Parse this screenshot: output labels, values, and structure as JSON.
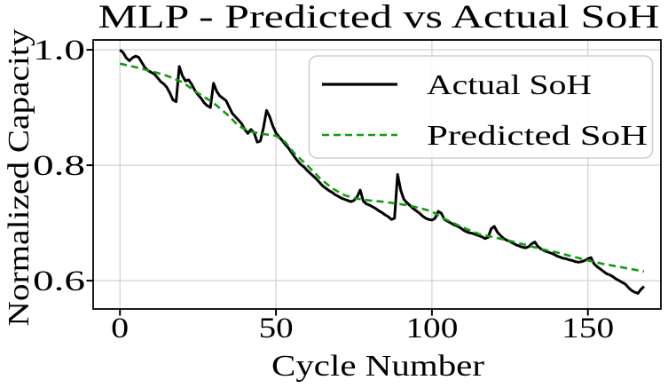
{
  "chart_data": {
    "type": "line",
    "title": "MLP - Predicted vs Actual SoH",
    "xlabel": "Cycle Number",
    "ylabel": "Normalized Capacity",
    "xlim": [
      -8.6,
      173.4
    ],
    "ylim": [
      0.551,
      1.017
    ],
    "xticks": [
      0,
      50,
      100,
      150
    ],
    "yticks": [
      1.0,
      0.8,
      0.6
    ],
    "grid": true,
    "grid_color": "#cccccc",
    "legend_position": "upper right",
    "series": [
      {
        "name": "Actual SoH",
        "color": "#000000",
        "style": "solid",
        "points": [
          [
            0,
            1.0
          ],
          [
            1,
            0.995
          ],
          [
            2,
            0.986
          ],
          [
            3,
            0.981
          ],
          [
            4,
            0.986
          ],
          [
            5,
            0.989
          ],
          [
            6,
            0.987
          ],
          [
            7,
            0.978
          ],
          [
            8,
            0.969
          ],
          [
            9,
            0.964
          ],
          [
            10,
            0.961
          ],
          [
            11,
            0.958
          ],
          [
            12,
            0.952
          ],
          [
            13,
            0.945
          ],
          [
            14,
            0.941
          ],
          [
            15,
            0.935
          ],
          [
            16,
            0.925
          ],
          [
            17,
            0.913
          ],
          [
            18,
            0.91
          ],
          [
            19,
            0.971
          ],
          [
            20,
            0.955
          ],
          [
            21,
            0.946
          ],
          [
            22,
            0.948
          ],
          [
            23,
            0.94
          ],
          [
            24,
            0.93
          ],
          [
            25,
            0.922
          ],
          [
            26,
            0.916
          ],
          [
            27,
            0.908
          ],
          [
            28,
            0.903
          ],
          [
            29,
            0.9
          ],
          [
            30,
            0.942
          ],
          [
            31,
            0.928
          ],
          [
            32,
            0.92
          ],
          [
            33,
            0.916
          ],
          [
            34,
            0.912
          ],
          [
            35,
            0.901
          ],
          [
            36,
            0.89
          ],
          [
            37,
            0.884
          ],
          [
            38,
            0.878
          ],
          [
            39,
            0.872
          ],
          [
            40,
            0.862
          ],
          [
            41,
            0.855
          ],
          [
            42,
            0.862
          ],
          [
            43,
            0.856
          ],
          [
            44,
            0.84
          ],
          [
            45,
            0.842
          ],
          [
            46,
            0.865
          ],
          [
            47,
            0.895
          ],
          [
            48,
            0.884
          ],
          [
            49,
            0.868
          ],
          [
            50,
            0.856
          ],
          [
            51,
            0.849
          ],
          [
            52,
            0.843
          ],
          [
            53,
            0.836
          ],
          [
            54,
            0.83
          ],
          [
            55,
            0.822
          ],
          [
            56,
            0.814
          ],
          [
            57,
            0.807
          ],
          [
            58,
            0.801
          ],
          [
            59,
            0.797
          ],
          [
            60,
            0.791
          ],
          [
            61,
            0.786
          ],
          [
            62,
            0.781
          ],
          [
            63,
            0.776
          ],
          [
            64,
            0.77
          ],
          [
            65,
            0.764
          ],
          [
            66,
            0.76
          ],
          [
            67,
            0.756
          ],
          [
            68,
            0.753
          ],
          [
            69,
            0.749
          ],
          [
            70,
            0.746
          ],
          [
            71,
            0.743
          ],
          [
            72,
            0.741
          ],
          [
            73,
            0.739
          ],
          [
            74,
            0.737
          ],
          [
            75,
            0.739
          ],
          [
            76,
            0.745
          ],
          [
            77,
            0.757
          ],
          [
            78,
            0.738
          ],
          [
            79,
            0.733
          ],
          [
            80,
            0.731
          ],
          [
            81,
            0.728
          ],
          [
            82,
            0.725
          ],
          [
            83,
            0.721
          ],
          [
            84,
            0.718
          ],
          [
            85,
            0.714
          ],
          [
            86,
            0.711
          ],
          [
            87,
            0.706
          ],
          [
            88,
            0.708
          ],
          [
            89,
            0.784
          ],
          [
            90,
            0.757
          ],
          [
            91,
            0.741
          ],
          [
            92,
            0.735
          ],
          [
            93,
            0.73
          ],
          [
            94,
            0.725
          ],
          [
            95,
            0.721
          ],
          [
            96,
            0.717
          ],
          [
            97,
            0.712
          ],
          [
            98,
            0.708
          ],
          [
            99,
            0.706
          ],
          [
            100,
            0.705
          ],
          [
            101,
            0.708
          ],
          [
            102,
            0.72
          ],
          [
            103,
            0.717
          ],
          [
            104,
            0.706
          ],
          [
            105,
            0.703
          ],
          [
            106,
            0.7
          ],
          [
            107,
            0.697
          ],
          [
            108,
            0.695
          ],
          [
            109,
            0.692
          ],
          [
            110,
            0.688
          ],
          [
            111,
            0.685
          ],
          [
            112,
            0.683
          ],
          [
            113,
            0.682
          ],
          [
            114,
            0.68
          ],
          [
            115,
            0.678
          ],
          [
            116,
            0.676
          ],
          [
            117,
            0.673
          ],
          [
            118,
            0.675
          ],
          [
            119,
            0.69
          ],
          [
            120,
            0.694
          ],
          [
            121,
            0.684
          ],
          [
            122,
            0.678
          ],
          [
            123,
            0.673
          ],
          [
            124,
            0.67
          ],
          [
            125,
            0.668
          ],
          [
            126,
            0.665
          ],
          [
            127,
            0.662
          ],
          [
            128,
            0.66
          ],
          [
            129,
            0.658
          ],
          [
            130,
            0.657
          ],
          [
            131,
            0.659
          ],
          [
            132,
            0.664
          ],
          [
            133,
            0.667
          ],
          [
            134,
            0.659
          ],
          [
            135,
            0.655
          ],
          [
            136,
            0.652
          ],
          [
            137,
            0.65
          ],
          [
            138,
            0.648
          ],
          [
            139,
            0.646
          ],
          [
            140,
            0.643
          ],
          [
            141,
            0.641
          ],
          [
            142,
            0.639
          ],
          [
            143,
            0.638
          ],
          [
            144,
            0.636
          ],
          [
            145,
            0.635
          ],
          [
            146,
            0.633
          ],
          [
            147,
            0.632
          ],
          [
            148,
            0.633
          ],
          [
            149,
            0.635
          ],
          [
            150,
            0.638
          ],
          [
            151,
            0.64
          ],
          [
            152,
            0.629
          ],
          [
            153,
            0.624
          ],
          [
            154,
            0.62
          ],
          [
            155,
            0.616
          ],
          [
            156,
            0.612
          ],
          [
            157,
            0.61
          ],
          [
            158,
            0.607
          ],
          [
            159,
            0.603
          ],
          [
            160,
            0.6
          ],
          [
            161,
            0.597
          ],
          [
            162,
            0.594
          ],
          [
            163,
            0.588
          ],
          [
            164,
            0.583
          ],
          [
            165,
            0.58
          ],
          [
            166,
            0.578
          ],
          [
            167,
            0.585
          ],
          [
            168,
            0.59
          ]
        ]
      },
      {
        "name": "Predicted SoH",
        "color": "#129c12",
        "style": "dashed",
        "points": [
          [
            0,
            0.976
          ],
          [
            5,
            0.97
          ],
          [
            10,
            0.963
          ],
          [
            15,
            0.955
          ],
          [
            20,
            0.944
          ],
          [
            25,
            0.925
          ],
          [
            30,
            0.908
          ],
          [
            35,
            0.885
          ],
          [
            38,
            0.868
          ],
          [
            42,
            0.858
          ],
          [
            46,
            0.854
          ],
          [
            50,
            0.851
          ],
          [
            53,
            0.84
          ],
          [
            56,
            0.82
          ],
          [
            60,
            0.8
          ],
          [
            64,
            0.778
          ],
          [
            68,
            0.76
          ],
          [
            72,
            0.748
          ],
          [
            76,
            0.742
          ],
          [
            80,
            0.739
          ],
          [
            84,
            0.737
          ],
          [
            88,
            0.734
          ],
          [
            92,
            0.731
          ],
          [
            96,
            0.726
          ],
          [
            100,
            0.72
          ],
          [
            103,
            0.71
          ],
          [
            106,
            0.702
          ],
          [
            110,
            0.692
          ],
          [
            115,
            0.681
          ],
          [
            120,
            0.675
          ],
          [
            125,
            0.669
          ],
          [
            130,
            0.662
          ],
          [
            135,
            0.655
          ],
          [
            140,
            0.649
          ],
          [
            145,
            0.642
          ],
          [
            150,
            0.635
          ],
          [
            155,
            0.629
          ],
          [
            160,
            0.624
          ],
          [
            164,
            0.62
          ],
          [
            168,
            0.616
          ]
        ]
      }
    ]
  }
}
